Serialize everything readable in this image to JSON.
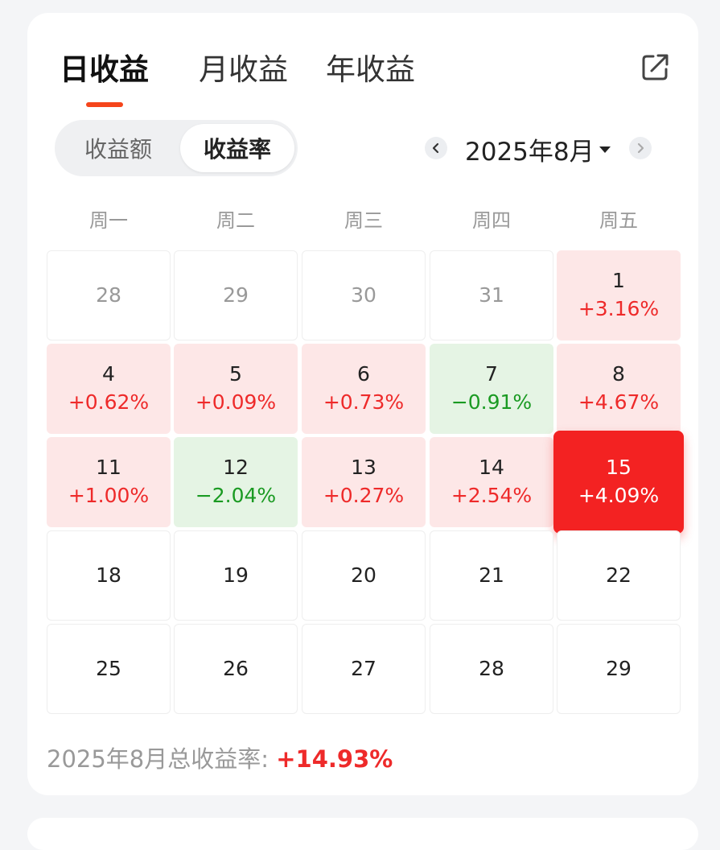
{
  "tabs": [
    {
      "label": "日收益",
      "active": true
    },
    {
      "label": "月收益",
      "active": false
    },
    {
      "label": "年收益",
      "active": false
    }
  ],
  "segment": {
    "left": "收益额",
    "right": "收益率",
    "selected": "收益率"
  },
  "month": {
    "label": "2025年8月"
  },
  "weekdays": [
    "周一",
    "周二",
    "周三",
    "周四",
    "周五"
  ],
  "calendar": [
    [
      {
        "day": "28",
        "rate": "",
        "type": "other"
      },
      {
        "day": "29",
        "rate": "",
        "type": "other"
      },
      {
        "day": "30",
        "rate": "",
        "type": "other"
      },
      {
        "day": "31",
        "rate": "",
        "type": "other"
      },
      {
        "day": "1",
        "rate": "+3.16%",
        "type": "up"
      }
    ],
    [
      {
        "day": "4",
        "rate": "+0.62%",
        "type": "up"
      },
      {
        "day": "5",
        "rate": "+0.09%",
        "type": "up"
      },
      {
        "day": "6",
        "rate": "+0.73%",
        "type": "up"
      },
      {
        "day": "7",
        "rate": "−0.91%",
        "type": "down"
      },
      {
        "day": "8",
        "rate": "+4.67%",
        "type": "up"
      }
    ],
    [
      {
        "day": "11",
        "rate": "+1.00%",
        "type": "up"
      },
      {
        "day": "12",
        "rate": "−2.04%",
        "type": "down"
      },
      {
        "day": "13",
        "rate": "+0.27%",
        "type": "up"
      },
      {
        "day": "14",
        "rate": "+2.54%",
        "type": "up"
      },
      {
        "day": "15",
        "rate": "+4.09%",
        "type": "sel"
      }
    ],
    [
      {
        "day": "18",
        "rate": "",
        "type": "empty"
      },
      {
        "day": "19",
        "rate": "",
        "type": "empty"
      },
      {
        "day": "20",
        "rate": "",
        "type": "empty"
      },
      {
        "day": "21",
        "rate": "",
        "type": "empty"
      },
      {
        "day": "22",
        "rate": "",
        "type": "empty"
      }
    ],
    [
      {
        "day": "25",
        "rate": "",
        "type": "empty"
      },
      {
        "day": "26",
        "rate": "",
        "type": "empty"
      },
      {
        "day": "27",
        "rate": "",
        "type": "empty"
      },
      {
        "day": "28",
        "rate": "",
        "type": "empty"
      },
      {
        "day": "29",
        "rate": "",
        "type": "empty"
      }
    ]
  ],
  "summary": {
    "label": "2025年8月总收益率: ",
    "value": "+14.93%"
  },
  "colors": {
    "accent": "#f5451b",
    "up": "#ee2a2a",
    "down": "#1a9a22",
    "selected": "#f32222"
  },
  "icons": {
    "share": "share-icon",
    "prev": "chevron-left-icon",
    "next": "chevron-right-icon"
  }
}
